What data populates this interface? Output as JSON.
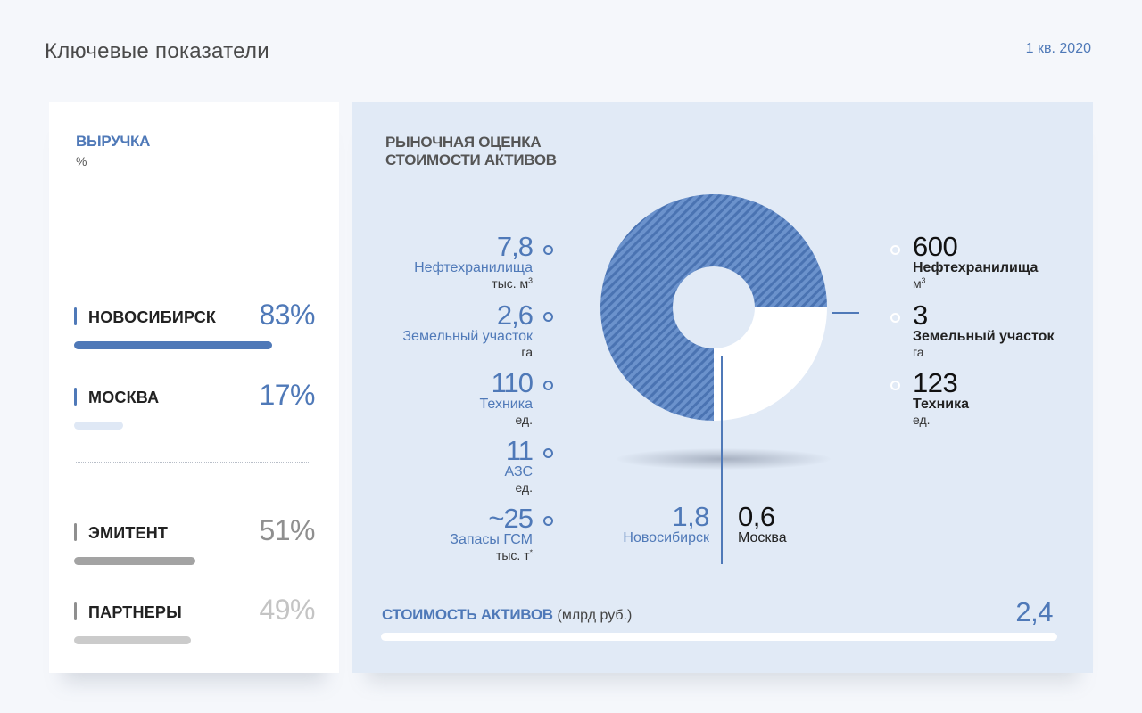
{
  "header": {
    "title": "Ключевые показатели",
    "period": "1 кв. 2020"
  },
  "colors": {
    "accent": "#4f79b8",
    "dark_gray": "#a3a3a3",
    "light_gray": "#cbcbcb",
    "light_blue": "#dfe8f5",
    "panel_bg": "#e1eaf6"
  },
  "revenue": {
    "title": "ВЫРУЧКА",
    "unit": "%",
    "rows": [
      {
        "label": "НОВОСИБИРСК",
        "pct_text": "83%",
        "value": 83
      },
      {
        "label": "МОСКВА",
        "pct_text": "17%",
        "value": 17
      },
      {
        "label": "ЭМИТЕНТ",
        "pct_text": "51%",
        "value": 51
      },
      {
        "label": "ПАРТНЕРЫ",
        "pct_text": "49%",
        "value": 49
      }
    ]
  },
  "market": {
    "title_line1": "РЫНОЧНАЯ ОЦЕНКА",
    "title_line2": "СТОИМОСТИ АКТИВОВ",
    "left_items": [
      {
        "value": "7,8",
        "name": "Нефтехранилища",
        "unit": "тыс. м",
        "unit_sup": "3"
      },
      {
        "value": "2,6",
        "name": "Земельный участок",
        "unit": "га",
        "unit_sup": ""
      },
      {
        "value": "110",
        "name": "Техника",
        "unit": "ед.",
        "unit_sup": ""
      },
      {
        "value": "11",
        "name": "АЗС",
        "unit": "ед.",
        "unit_sup": ""
      },
      {
        "value": "~25",
        "name": "Запасы ГСМ",
        "unit": "тыс. т",
        "unit_sup": "*"
      }
    ],
    "right_items": [
      {
        "value": "600",
        "name": "Нефтехранилища",
        "unit": "м",
        "unit_sup": "3"
      },
      {
        "value": "3",
        "name": "Земельный участок",
        "unit": "га",
        "unit_sup": ""
      },
      {
        "value": "123",
        "name": "Техника",
        "unit": "ед.",
        "unit_sup": ""
      }
    ],
    "city_left": {
      "value": "1,8",
      "name": "Новосибирск"
    },
    "city_right": {
      "value": "0,6",
      "name": "Москва"
    },
    "total": {
      "label": "СТОИМОСТЬ АКТИВОВ",
      "unit": "(млрд руб.)",
      "value": "2,4"
    }
  },
  "chart_data": [
    {
      "type": "bar",
      "title": "ВЫРУЧКА",
      "unit": "%",
      "categories": [
        "НОВОСИБИРСК",
        "МОСКВА",
        "ЭМИТЕНТ",
        "ПАРТНЕРЫ"
      ],
      "values": [
        83,
        17,
        51,
        49
      ],
      "ylim": [
        0,
        100
      ]
    },
    {
      "type": "pie",
      "title": "РЫНОЧНАЯ ОЦЕНКА СТОИМОСТИ АКТИВОВ",
      "categories": [
        "Новосибирск",
        "Москва"
      ],
      "values": [
        1.8,
        0.6
      ],
      "total": 2.4,
      "donut": true
    }
  ]
}
